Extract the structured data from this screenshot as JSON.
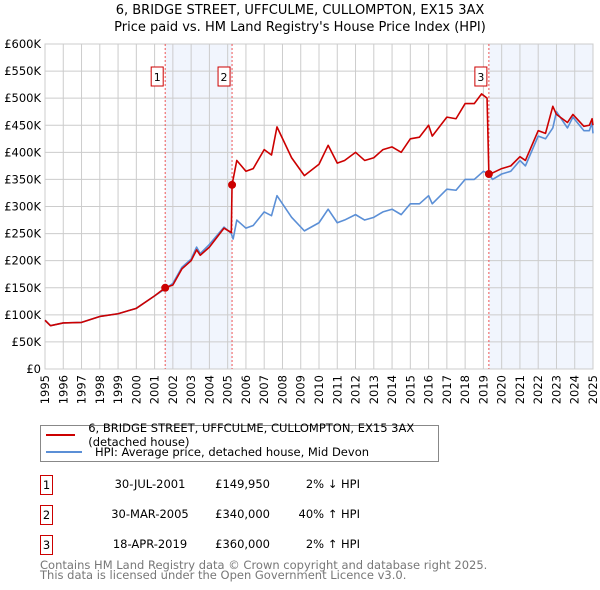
{
  "chart_data": {
    "type": "line",
    "title": "6, BRIDGE STREET, UFFCULME, CULLOMPTON, EX15 3AX",
    "subtitle": "Price paid vs. HM Land Registry's House Price Index (HPI)",
    "xlim": [
      1995,
      2025
    ],
    "ylim": [
      0,
      600000
    ],
    "y_ticks": [
      0,
      50000,
      100000,
      150000,
      200000,
      250000,
      300000,
      350000,
      400000,
      450000,
      500000,
      550000,
      600000
    ],
    "y_tick_labels": [
      "£0",
      "£50K",
      "£100K",
      "£150K",
      "£200K",
      "£250K",
      "£300K",
      "£350K",
      "£400K",
      "£450K",
      "£500K",
      "£550K",
      "£600K"
    ],
    "x_ticks": [
      "1995",
      "1996",
      "1997",
      "1998",
      "1999",
      "2000",
      "2001",
      "2002",
      "2003",
      "2004",
      "2005",
      "2006",
      "2007",
      "2008",
      "2009",
      "2010",
      "2011",
      "2012",
      "2013",
      "2014",
      "2015",
      "2016",
      "2017",
      "2018",
      "2019",
      "2020",
      "2021",
      "2022",
      "2023",
      "2024",
      "2025"
    ],
    "grid": true,
    "series": [
      {
        "name": "6, BRIDGE STREET, UFFCULME, CULLOMPTON, EX15 3AX (detached house)",
        "color": "#cc0000",
        "points": [
          [
            1995,
            90
          ],
          [
            1995.3,
            80
          ],
          [
            1996,
            85
          ],
          [
            1997,
            86
          ],
          [
            1998,
            97
          ],
          [
            1999,
            102
          ],
          [
            2000,
            112
          ],
          [
            2001,
            135
          ],
          [
            2001.58,
            150
          ],
          [
            2002,
            155
          ],
          [
            2002.5,
            185
          ],
          [
            2003,
            200
          ],
          [
            2003.3,
            220
          ],
          [
            2003.5,
            210
          ],
          [
            2004,
            225
          ],
          [
            2004.8,
            260
          ],
          [
            2005.2,
            252
          ],
          [
            2005.24,
            340
          ],
          [
            2005.5,
            385
          ],
          [
            2006,
            365
          ],
          [
            2006.4,
            370
          ],
          [
            2007,
            405
          ],
          [
            2007.4,
            395
          ],
          [
            2007.7,
            447
          ],
          [
            2008.5,
            390
          ],
          [
            2009.2,
            357
          ],
          [
            2010,
            378
          ],
          [
            2010.5,
            413
          ],
          [
            2011,
            380
          ],
          [
            2011.4,
            385
          ],
          [
            2012,
            400
          ],
          [
            2012.5,
            385
          ],
          [
            2013,
            390
          ],
          [
            2013.5,
            405
          ],
          [
            2014,
            410
          ],
          [
            2014.5,
            400
          ],
          [
            2015,
            425
          ],
          [
            2015.5,
            428
          ],
          [
            2016,
            450
          ],
          [
            2016.2,
            430
          ],
          [
            2017,
            465
          ],
          [
            2017.5,
            462
          ],
          [
            2018,
            490
          ],
          [
            2018.5,
            490
          ],
          [
            2018.9,
            508
          ],
          [
            2019.2,
            500
          ],
          [
            2019.3,
            360
          ],
          [
            2019.5,
            362
          ],
          [
            2020,
            370
          ],
          [
            2020.5,
            375
          ],
          [
            2021,
            392
          ],
          [
            2021.3,
            385
          ],
          [
            2022,
            440
          ],
          [
            2022.4,
            435
          ],
          [
            2022.8,
            485
          ],
          [
            2023,
            470
          ],
          [
            2023.6,
            455
          ],
          [
            2023.9,
            470
          ],
          [
            2024.5,
            448
          ],
          [
            2024.8,
            450
          ],
          [
            2024.95,
            462
          ],
          [
            2025,
            450
          ]
        ]
      },
      {
        "name": "HPI: Average price, detached house, Mid Devon",
        "color": "#5b8fd6",
        "points": [
          [
            1995,
            90
          ],
          [
            1995.3,
            80
          ],
          [
            1996,
            85
          ],
          [
            1997,
            86
          ],
          [
            1998,
            97
          ],
          [
            1999,
            102
          ],
          [
            2000,
            112
          ],
          [
            2001,
            135
          ],
          [
            2001.58,
            148
          ],
          [
            2002,
            158
          ],
          [
            2002.5,
            188
          ],
          [
            2003,
            203
          ],
          [
            2003.3,
            225
          ],
          [
            2003.5,
            213
          ],
          [
            2004,
            230
          ],
          [
            2004.8,
            262
          ],
          [
            2005.2,
            250
          ],
          [
            2005.3,
            240
          ],
          [
            2005.5,
            275
          ],
          [
            2006,
            260
          ],
          [
            2006.4,
            265
          ],
          [
            2007,
            290
          ],
          [
            2007.4,
            283
          ],
          [
            2007.7,
            320
          ],
          [
            2008.5,
            280
          ],
          [
            2009.2,
            255
          ],
          [
            2010,
            270
          ],
          [
            2010.5,
            295
          ],
          [
            2011,
            270
          ],
          [
            2011.4,
            275
          ],
          [
            2012,
            285
          ],
          [
            2012.5,
            275
          ],
          [
            2013,
            280
          ],
          [
            2013.5,
            290
          ],
          [
            2014,
            295
          ],
          [
            2014.5,
            285
          ],
          [
            2015,
            305
          ],
          [
            2015.5,
            305
          ],
          [
            2016,
            320
          ],
          [
            2016.2,
            305
          ],
          [
            2017,
            332
          ],
          [
            2017.5,
            330
          ],
          [
            2018,
            350
          ],
          [
            2018.5,
            350
          ],
          [
            2019,
            365
          ],
          [
            2019.3,
            360
          ],
          [
            2019.5,
            350
          ],
          [
            2020,
            360
          ],
          [
            2020.5,
            365
          ],
          [
            2021,
            385
          ],
          [
            2021.3,
            375
          ],
          [
            2022,
            430
          ],
          [
            2022.4,
            425
          ],
          [
            2022.8,
            445
          ],
          [
            2023,
            475
          ],
          [
            2023.6,
            445
          ],
          [
            2023.9,
            465
          ],
          [
            2024.5,
            440
          ],
          [
            2024.8,
            440
          ],
          [
            2024.95,
            455
          ],
          [
            2025,
            435
          ]
        ]
      }
    ],
    "sales": [
      {
        "id": "1",
        "year": 2001.58,
        "value": 149950
      },
      {
        "id": "2",
        "year": 2005.24,
        "value": 340000
      },
      {
        "id": "3",
        "year": 2019.3,
        "value": 360000
      }
    ],
    "shaded_ranges": [
      [
        2001.58,
        2005.24
      ],
      [
        2019.3,
        2025
      ]
    ]
  },
  "legend": {
    "items": [
      "6, BRIDGE STREET, UFFCULME, CULLOMPTON, EX15 3AX (detached house)",
      "HPI: Average price, detached house, Mid Devon"
    ]
  },
  "transactions": [
    {
      "num": "1",
      "date": "30-JUL-2001",
      "price": "£149,950",
      "hpi": "2% ↓ HPI"
    },
    {
      "num": "2",
      "date": "30-MAR-2005",
      "price": "£340,000",
      "hpi": "40% ↑ HPI"
    },
    {
      "num": "3",
      "date": "18-APR-2019",
      "price": "£360,000",
      "hpi": "2% ↑ HPI"
    }
  ],
  "footer": {
    "line1": "Contains HM Land Registry data © Crown copyright and database right 2025.",
    "line2": "This data is licensed under the Open Government Licence v3.0."
  }
}
